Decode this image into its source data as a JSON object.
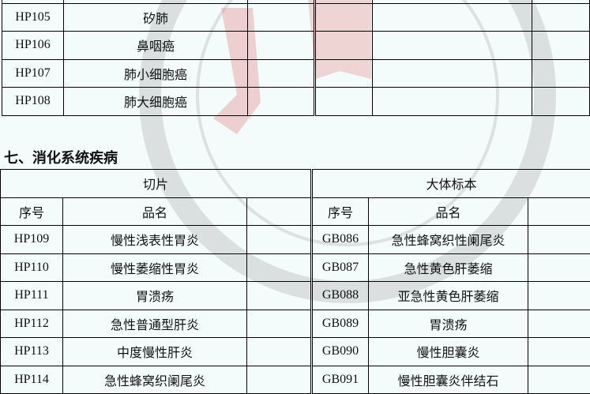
{
  "section_title": "七、消化系统疾病",
  "top_table": {
    "rows": [
      {
        "id": "",
        "name": ""
      },
      {
        "id": "HP105",
        "name": "矽肺"
      },
      {
        "id": "HP106",
        "name": "鼻咽癌"
      },
      {
        "id": "HP107",
        "name": "肺小细胞癌"
      },
      {
        "id": "HP108",
        "name": "肺大细胞癌"
      }
    ]
  },
  "digestive_table": {
    "group_slices": "切片",
    "group_gross": "大体标本",
    "col_id": "序号",
    "col_name": "品名",
    "rows": [
      {
        "slice_id": "HP109",
        "slice_name": "慢性浅表性胃炎",
        "gross_id": "GB086",
        "gross_name": "急性蜂窝织性阑尾炎"
      },
      {
        "slice_id": "HP110",
        "slice_name": "慢性萎缩性胃炎",
        "gross_id": "GB087",
        "gross_name": "急性黄色肝萎缩"
      },
      {
        "slice_id": "HP111",
        "slice_name": "胃溃疡",
        "gross_id": "GB088",
        "gross_name": "亚急性黄色肝萎缩"
      },
      {
        "slice_id": "HP112",
        "slice_name": "急性普通型肝炎",
        "gross_id": "GB089",
        "gross_name": "胃溃疡"
      },
      {
        "slice_id": "HP113",
        "slice_name": "中度慢性肝炎",
        "gross_id": "GB090",
        "gross_name": "慢性胆囊炎"
      },
      {
        "slice_id": "HP114",
        "slice_name": "急性蜂窝织阑尾炎",
        "gross_id": "GB091",
        "gross_name": "慢性胆囊炎伴结石"
      }
    ]
  }
}
